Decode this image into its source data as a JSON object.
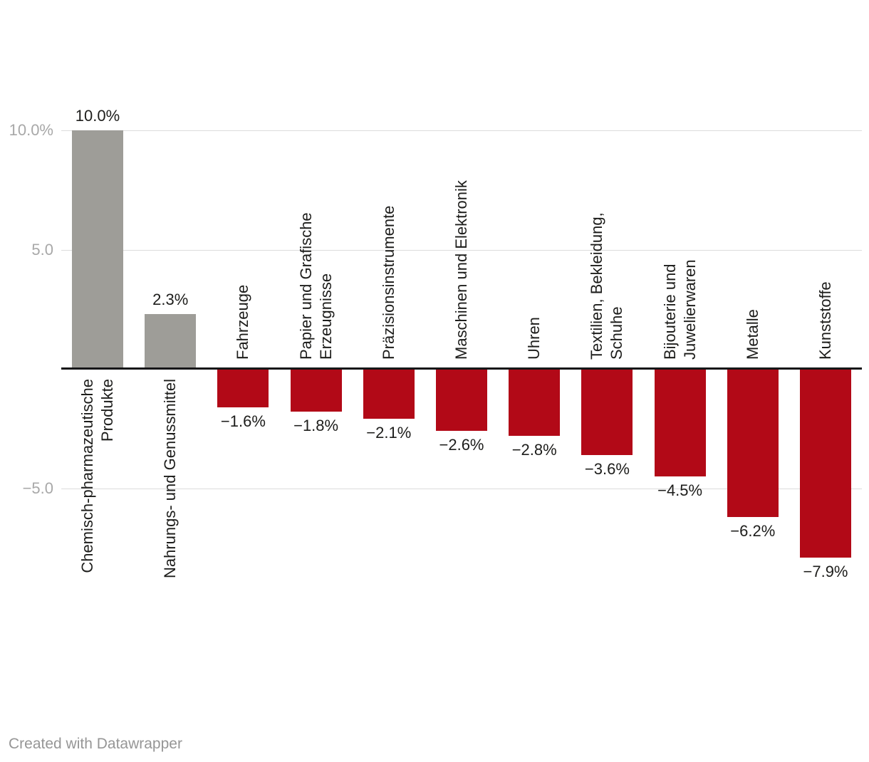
{
  "chart_data": {
    "type": "bar",
    "orientation": "vertical",
    "categories": [
      "Chemisch-pharmazeutische Produkte",
      "Nahrungs- und Genussmittel",
      "Fahrzeuge",
      "Papier und Grafische Erzeugnisse",
      "Präzisionsinstrumente",
      "Maschinen und Elektronik",
      "Uhren",
      "Textilien, Bekleidung, Schuhe",
      "Bijouterie und Juwelierwaren",
      "Metalle",
      "Kunststoffe"
    ],
    "category_display": [
      "Chemisch-pharmazeutische\nProdukte",
      "Nahrungs- und Genussmittel",
      "Fahrzeuge",
      "Papier und Grafische\nErzeugnisse",
      "Präzisionsinstrumente",
      "Maschinen und Elektronik",
      "Uhren",
      "Textilien, Bekleidung,\nSchuhe",
      "Bijouterie und\nJuwelierwaren",
      "Metalle",
      "Kunststoffe"
    ],
    "values": [
      10.0,
      2.3,
      -1.6,
      -1.8,
      -2.1,
      -2.6,
      -2.8,
      -3.6,
      -4.5,
      -6.2,
      -7.9
    ],
    "value_labels": [
      "10.0%",
      "2.3%",
      "−1.6%",
      "−1.8%",
      "−2.1%",
      "−2.6%",
      "−2.8%",
      "−3.6%",
      "−4.5%",
      "−6.2%",
      "−7.9%"
    ],
    "unit": "%",
    "axis": {
      "ticks": [
        {
          "value": 10,
          "label": "10.0%"
        },
        {
          "value": 5,
          "label": "5.0"
        },
        {
          "value": -5,
          "label": "−5.0"
        }
      ],
      "ylim": [
        -8.8,
        11.2
      ],
      "grid": true,
      "zero_baseline": true
    },
    "colors": {
      "positive_bar": "#9e9d98",
      "negative_bar": "#b20917",
      "gridline": "#dcdcdc",
      "axis_line": "#161618",
      "tick_text": "#a8a8a8",
      "label_text": "#1d1d1b"
    },
    "legend": {
      "visible": false
    }
  },
  "footer": {
    "credit": "Created with Datawrapper"
  }
}
